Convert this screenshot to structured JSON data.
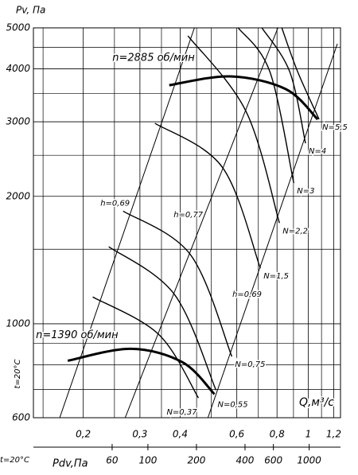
{
  "chart_data": {
    "type": "line",
    "y_label": "Pv, Па",
    "x_label": "Q,м³/с",
    "x2_label": "Pdv,Па",
    "y_note": "t=20°C",
    "x2_note": "t=20°C",
    "xscale": "log",
    "yscale": "log",
    "grid": true,
    "xlim": [
      0.14,
      1.26
    ],
    "ylim": [
      600,
      5000
    ],
    "xticks": [
      {
        "value": 0.2,
        "label": "0,2"
      },
      {
        "value": 0.3,
        "label": "0,3"
      },
      {
        "value": 0.4,
        "label": "0,4"
      },
      {
        "value": 0.6,
        "label": "0,6"
      },
      {
        "value": 0.8,
        "label": "0,8"
      },
      1,
      {
        "value": 1.2,
        "label": "1,2"
      }
    ],
    "xgrid": [
      0.15,
      0.25,
      0.35,
      0.45,
      0.5,
      0.7,
      0.9,
      1.1
    ],
    "yticks": [
      600,
      1000,
      2000,
      3000,
      4000,
      5000
    ],
    "ygrid": [
      700,
      800,
      900,
      1500,
      2500,
      3500,
      4500
    ],
    "x2lim": [
      19.5,
      1564
    ],
    "x2ticks": [
      60,
      100,
      200,
      400,
      600,
      1000
    ],
    "speed_curves": [
      {
        "name": "n=2885 об/мин",
        "color": "#000000",
        "x": [
          0.37,
          0.572,
          0.852,
          1.07
        ],
        "values": [
          3660,
          3840,
          3583,
          3040
        ]
      },
      {
        "name": "n=1390 об/мин",
        "color": "#000000",
        "x": [
          0.179,
          0.281,
          0.407,
          0.511
        ],
        "values": [
          818,
          873,
          811,
          682
        ]
      }
    ],
    "power_curves": [
      {
        "name": "N=5,5",
        "x": [
          0.828,
          0.927,
          1.081
        ],
        "values": [
          5000,
          3941,
          3040
        ]
      },
      {
        "name": "N=4",
        "x": [
          0.718,
          0.876,
          0.981
        ],
        "values": [
          5000,
          3941,
          2669
        ]
      },
      {
        "name": "N=3",
        "x": [
          0.606,
          0.76,
          0.902
        ],
        "values": [
          5000,
          3941,
          2150
        ]
      },
      {
        "name": "N=2,2",
        "x": [
          0.423,
          0.641,
          0.814
        ],
        "values": [
          4788,
          3174,
          1730
        ]
      },
      {
        "name": "N=1,5",
        "x": [
          0.334,
          0.541,
          0.71
        ],
        "values": [
          2976,
          2343,
          1353
        ]
      },
      {
        "name": "N=0,75",
        "x": [
          0.266,
          0.431,
          0.579
        ],
        "values": [
          1846,
          1455,
          837
        ]
      },
      {
        "name": "N=0,55",
        "x": [
          0.24,
          0.384,
          0.517
        ],
        "values": [
          1521,
          1173,
          697
        ]
      },
      {
        "name": "N=0,37",
        "x": [
          0.214,
          0.343,
          0.456
        ],
        "values": [
          1157,
          944,
          668
        ]
      }
    ],
    "efficiency_lines": [
      {
        "name": "h=0,69",
        "x": [
          0.169,
          0.443
        ],
        "values": [
          600,
          5000
        ]
      },
      {
        "name": "h=0,77",
        "x": [
          0.27,
          0.805
        ],
        "values": [
          600,
          5000
        ]
      },
      {
        "name": "h=0,69",
        "x": [
          0.488,
          1.232
        ],
        "values": [
          600,
          4585
        ]
      }
    ]
  }
}
